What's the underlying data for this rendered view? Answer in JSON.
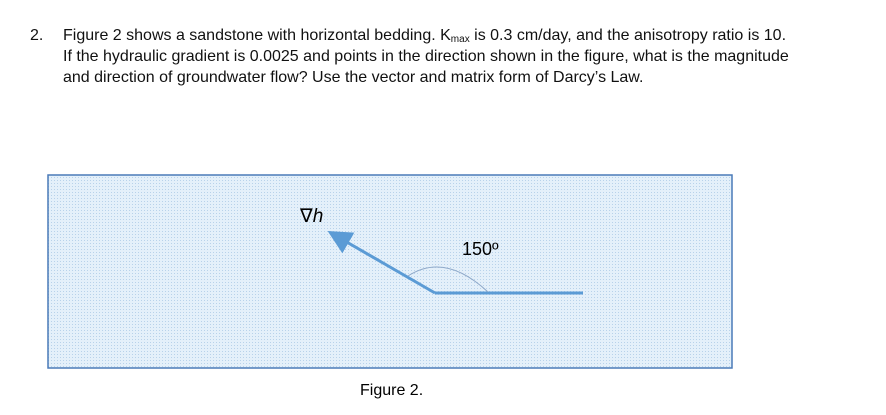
{
  "question": {
    "number": "2.",
    "text_before": "Figure 2 shows a sandstone with horizontal bedding. K",
    "subscript": "max",
    "text_after": " is 0.3 cm/day, and the anisotropy ratio is 10. If the hydraulic gradient is 0.0025 and points in the direction shown in the figure, what is the magnitude and direction of groundwater flow? Use the vector and matrix form of Darcy’s Law."
  },
  "figure": {
    "gradient_label": "∇h",
    "angle_label": "150º",
    "caption": "Figure 2."
  }
}
